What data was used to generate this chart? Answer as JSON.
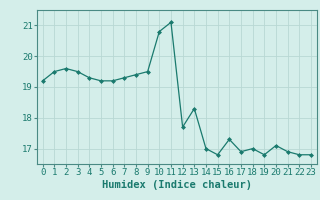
{
  "x": [
    0,
    1,
    2,
    3,
    4,
    5,
    6,
    7,
    8,
    9,
    10,
    11,
    12,
    13,
    14,
    15,
    16,
    17,
    18,
    19,
    20,
    21,
    22,
    23
  ],
  "y": [
    19.2,
    19.5,
    19.6,
    19.5,
    19.3,
    19.2,
    19.2,
    19.3,
    19.4,
    19.5,
    20.8,
    21.1,
    17.7,
    18.3,
    17.0,
    16.8,
    17.3,
    16.9,
    17.0,
    16.8,
    17.1,
    16.9,
    16.8,
    16.8
  ],
  "line_color": "#1a7a6e",
  "marker": "D",
  "marker_size": 2.0,
  "bg_color": "#d4eeea",
  "grid_color": "#b8d8d4",
  "xlabel": "Humidex (Indice chaleur)",
  "ylim": [
    16.5,
    21.5
  ],
  "xlim": [
    -0.5,
    23.5
  ],
  "yticks": [
    17,
    18,
    19,
    20,
    21
  ],
  "xtick_labels": [
    "0",
    "1",
    "2",
    "3",
    "4",
    "5",
    "6",
    "7",
    "8",
    "9",
    "10",
    "11",
    "12",
    "13",
    "14",
    "15",
    "16",
    "17",
    "18",
    "19",
    "20",
    "21",
    "22",
    "23"
  ],
  "xlabel_fontsize": 7.5,
  "tick_fontsize": 6.5,
  "spine_color": "#4a8a84"
}
